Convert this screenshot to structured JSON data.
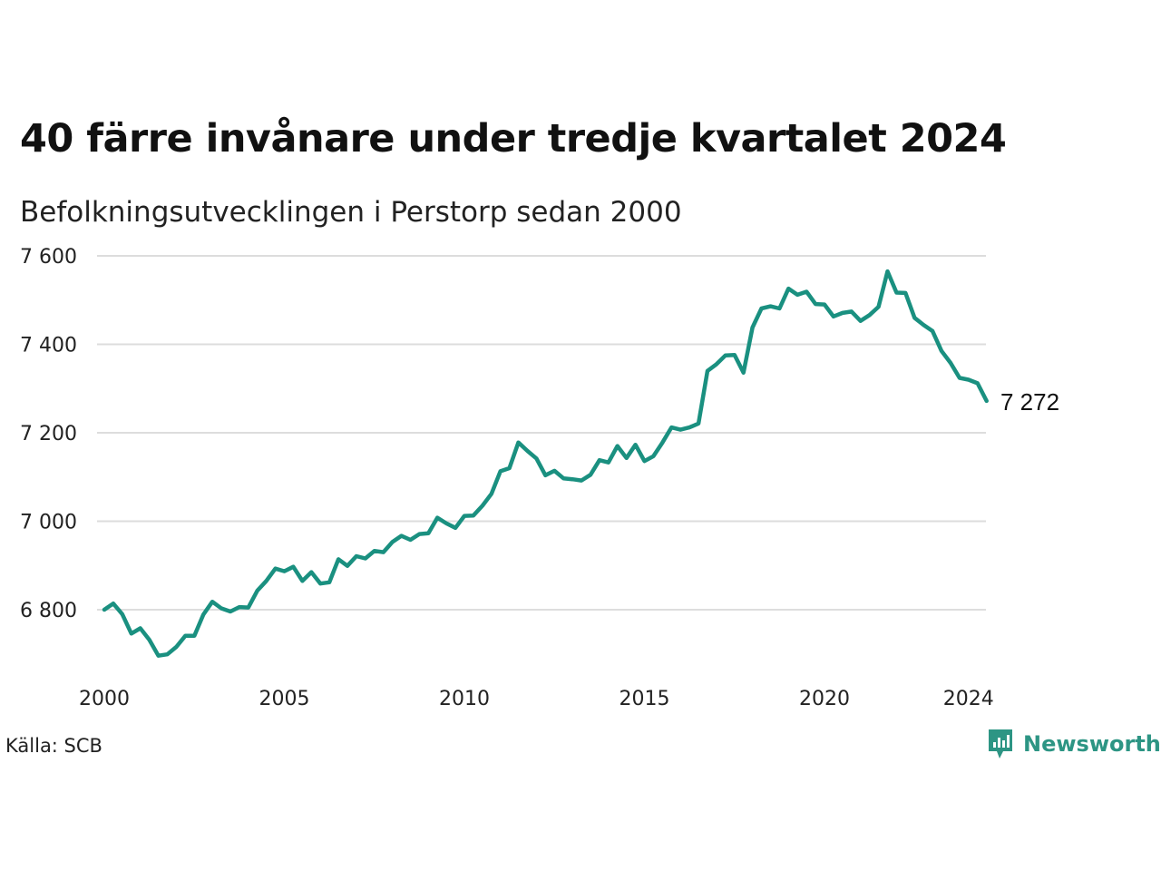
{
  "header": {
    "title": "40 färre invånare under tredje kvartalet 2024",
    "subtitle": "Befolkningsutvecklingen i Perstorp sedan 2000"
  },
  "footer": {
    "source": "Källa: SCB",
    "brand": "Newsworthy",
    "brand_icon": "newsworthy-logo-icon"
  },
  "colors": {
    "line": "#1a9080",
    "grid": "#dddddd",
    "brand": "#2d9584"
  },
  "chart_data": {
    "type": "line",
    "title": "40 färre invånare under tredje kvartalet 2024",
    "subtitle": "Befolkningsutvecklingen i Perstorp sedan 2000",
    "xlabel": "",
    "ylabel": "",
    "x_ticks": [
      2000,
      2005,
      2010,
      2015,
      2020,
      2024
    ],
    "y_ticks": [
      6800,
      7000,
      7200,
      7400,
      7600
    ],
    "y_tick_labels": [
      "6 800",
      "7 000",
      "7 200",
      "7 400",
      "7 600"
    ],
    "xlim": [
      2000,
      2024.5
    ],
    "ylim": [
      6680,
      7620
    ],
    "grid": true,
    "end_label": "7 272",
    "series": [
      {
        "x": [
          2000.0,
          2000.25,
          2000.5,
          2000.75,
          2001.0,
          2001.25,
          2001.5,
          2001.75,
          2002.0,
          2002.25,
          2002.5,
          2002.75,
          2003.0,
          2003.25,
          2003.5,
          2003.75,
          2004.0,
          2004.25,
          2004.5,
          2004.75,
          2005.0,
          2005.25,
          2005.5,
          2005.75,
          2006.0,
          2006.25,
          2006.5,
          2006.75,
          2007.0,
          2007.25,
          2007.5,
          2007.75,
          2008.0,
          2008.25,
          2008.5,
          2008.75,
          2009.0,
          2009.25,
          2009.5,
          2009.75,
          2010.0,
          2010.25,
          2010.5,
          2010.75,
          2011.0,
          2011.25,
          2011.5,
          2011.75,
          2012.0,
          2012.25,
          2012.5,
          2012.75,
          2013.0,
          2013.25,
          2013.5,
          2013.75,
          2014.0,
          2014.25,
          2014.5,
          2014.75,
          2015.0,
          2015.25,
          2015.5,
          2015.75,
          2016.0,
          2016.25,
          2016.5,
          2016.75,
          2017.0,
          2017.25,
          2017.5,
          2017.75,
          2018.0,
          2018.25,
          2018.5,
          2018.75,
          2019.0,
          2019.25,
          2019.5,
          2019.75,
          2020.0,
          2020.25,
          2020.5,
          2020.75,
          2021.0,
          2021.25,
          2021.5,
          2021.75,
          2022.0,
          2022.25,
          2022.5,
          2022.75,
          2023.0,
          2023.25,
          2023.5,
          2023.75,
          2024.0,
          2024.25,
          2024.5
        ],
        "values": [
          6800,
          6814,
          6790,
          6746,
          6758,
          6732,
          6696,
          6699,
          6716,
          6741,
          6741,
          6789,
          6818,
          6803,
          6796,
          6806,
          6805,
          6843,
          6865,
          6893,
          6887,
          6897,
          6865,
          6885,
          6859,
          6862,
          6914,
          6899,
          6921,
          6916,
          6933,
          6930,
          6953,
          6967,
          6958,
          6971,
          6973,
          7008,
          6995,
          6985,
          7012,
          7013,
          7035,
          7062,
          7113,
          7120,
          7178,
          7159,
          7142,
          7104,
          7114,
          7097,
          7095,
          7092,
          7105,
          7138,
          7133,
          7170,
          7143,
          7173,
          7136,
          7147,
          7178,
          7212,
          7207,
          7212,
          7221,
          7340,
          7355,
          7375,
          7376,
          7336,
          7438,
          7481,
          7486,
          7481,
          7526,
          7512,
          7519,
          7491,
          7490,
          7463,
          7471,
          7474,
          7453,
          7466,
          7485,
          7565,
          7517,
          7516,
          7460,
          7444,
          7430,
          7385,
          7358,
          7324,
          7320,
          7312,
          7272
        ]
      }
    ]
  }
}
